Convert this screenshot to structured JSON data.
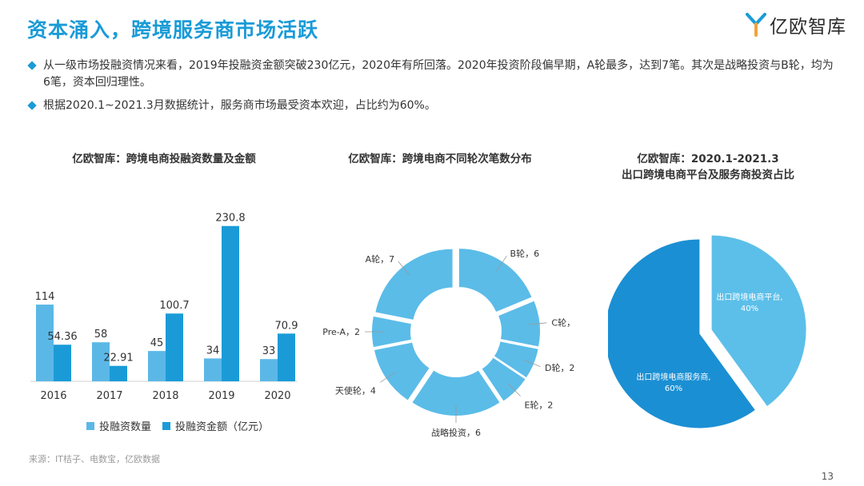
{
  "page": {
    "title": "资本涌入，跨境服务商市场活跃",
    "logo_text": "亿欧智库",
    "bullets": [
      "从一级市场投融资情况来看，2019年投融资金额突破230亿元，2020年有所回落。2020年投资阶段偏早期，A轮最多，达到7笔。其次是战略投资与B轮，均为6笔，资本回归理性。",
      "根据2020.1~2021.3月数据统计，服务商市场最受资本欢迎，占比约为60%。"
    ],
    "source": "来源：IT桔子、电数宝，亿欧数据",
    "page_number": "13"
  },
  "colors": {
    "accent": "#1a9bd7",
    "light_blue": "#5bb8e6",
    "donut_blue": "#5bbce8",
    "pie_dark": "#1b8fd3",
    "pie_light": "#5cbfe9"
  },
  "chart_data": [
    {
      "type": "bar",
      "title": "亿欧智库：跨境电商投融资数量及金额",
      "categories": [
        "2016",
        "2017",
        "2018",
        "2019",
        "2020"
      ],
      "series": [
        {
          "name": "投融资数量",
          "values": [
            114,
            58,
            45,
            34,
            33
          ],
          "labels": [
            "114",
            "58",
            "45",
            "34",
            "33"
          ],
          "color": "#5bb8e6"
        },
        {
          "name": "投融资金额（亿元）",
          "values": [
            54.36,
            22.91,
            100.7,
            230.8,
            70.9
          ],
          "labels": [
            "54.36",
            "22.91",
            "100.7",
            "230.8",
            "70.9"
          ],
          "color": "#1a9bd7"
        }
      ],
      "ylim": [
        0,
        240
      ],
      "legend": "bottom"
    },
    {
      "type": "pie",
      "variant": "donut",
      "title": "亿欧智库：跨境电商不同轮次笔数分布",
      "slices": [
        {
          "label": "B轮，6",
          "value": 6
        },
        {
          "label": "C轮，3",
          "value": 3
        },
        {
          "label": "D轮，2",
          "value": 2
        },
        {
          "label": "E轮，2",
          "value": 2
        },
        {
          "label": "战略投资，6",
          "value": 6
        },
        {
          "label": "天使轮，4",
          "value": 4
        },
        {
          "label": "Pre-A，2",
          "value": 2
        },
        {
          "label": "A轮，7",
          "value": 7
        }
      ]
    },
    {
      "type": "pie",
      "title_lines": [
        "亿欧智库：2020.1-2021.3",
        "出口跨境电商平台及服务商投资占比"
      ],
      "slices": [
        {
          "label_lines": [
            "出口跨境电商平台,",
            "40%"
          ],
          "value": 40,
          "color": "#5cbfe9"
        },
        {
          "label_lines": [
            "出口跨境电商服务商,",
            "60%"
          ],
          "value": 60,
          "color": "#1b8fd3"
        }
      ]
    }
  ]
}
